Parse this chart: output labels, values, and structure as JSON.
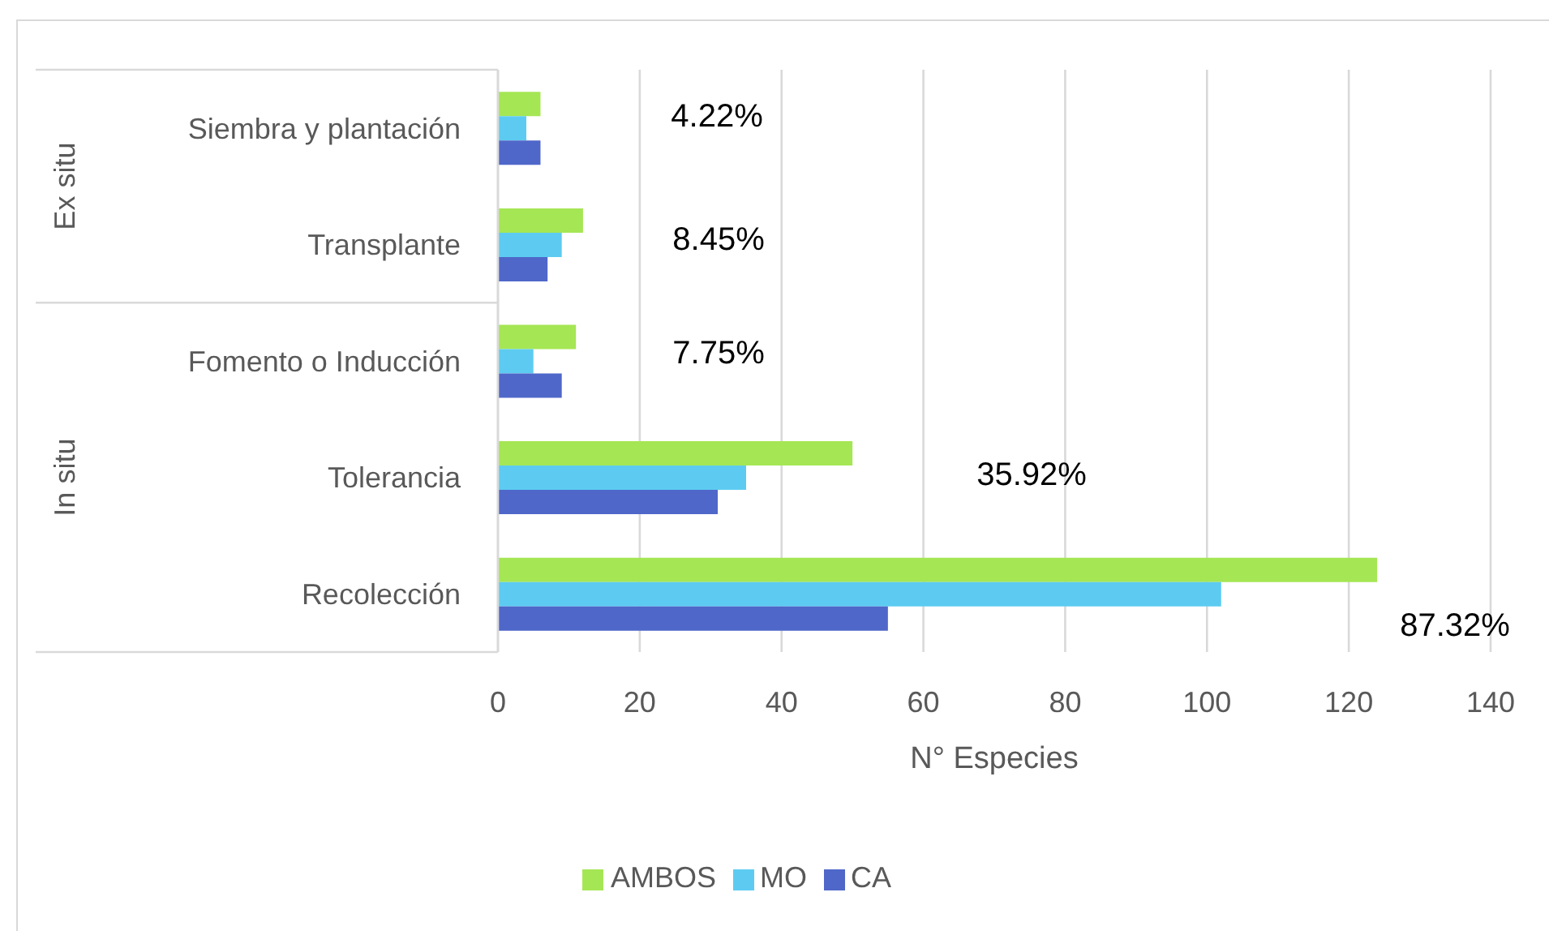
{
  "chart_data": {
    "type": "bar",
    "orientation": "horizontal",
    "xlabel": "N° Especies",
    "categories": [
      "Siembra y plantación",
      "Transplante",
      "Fomento o Inducción",
      "Tolerancia",
      "Recolección"
    ],
    "series": [
      {
        "name": "AMBOS",
        "color": "#a5e654",
        "values": [
          6,
          12,
          11,
          50,
          124
        ]
      },
      {
        "name": "MO",
        "color": "#5dcbf1",
        "values": [
          4,
          9,
          5,
          35,
          102
        ]
      },
      {
        "name": "CA",
        "color": "#4f67c9",
        "values": [
          6,
          7,
          9,
          31,
          55
        ]
      }
    ],
    "xlim": [
      0,
      140
    ],
    "xticks": [
      0,
      20,
      40,
      60,
      80,
      100,
      120,
      140
    ],
    "grid": "x",
    "legend": "bottom",
    "annotations": [
      "4.22%",
      "8.45%",
      "7.75%",
      "35.92%",
      "87.32%",
      "Ex situ",
      "In situ"
    ]
  }
}
